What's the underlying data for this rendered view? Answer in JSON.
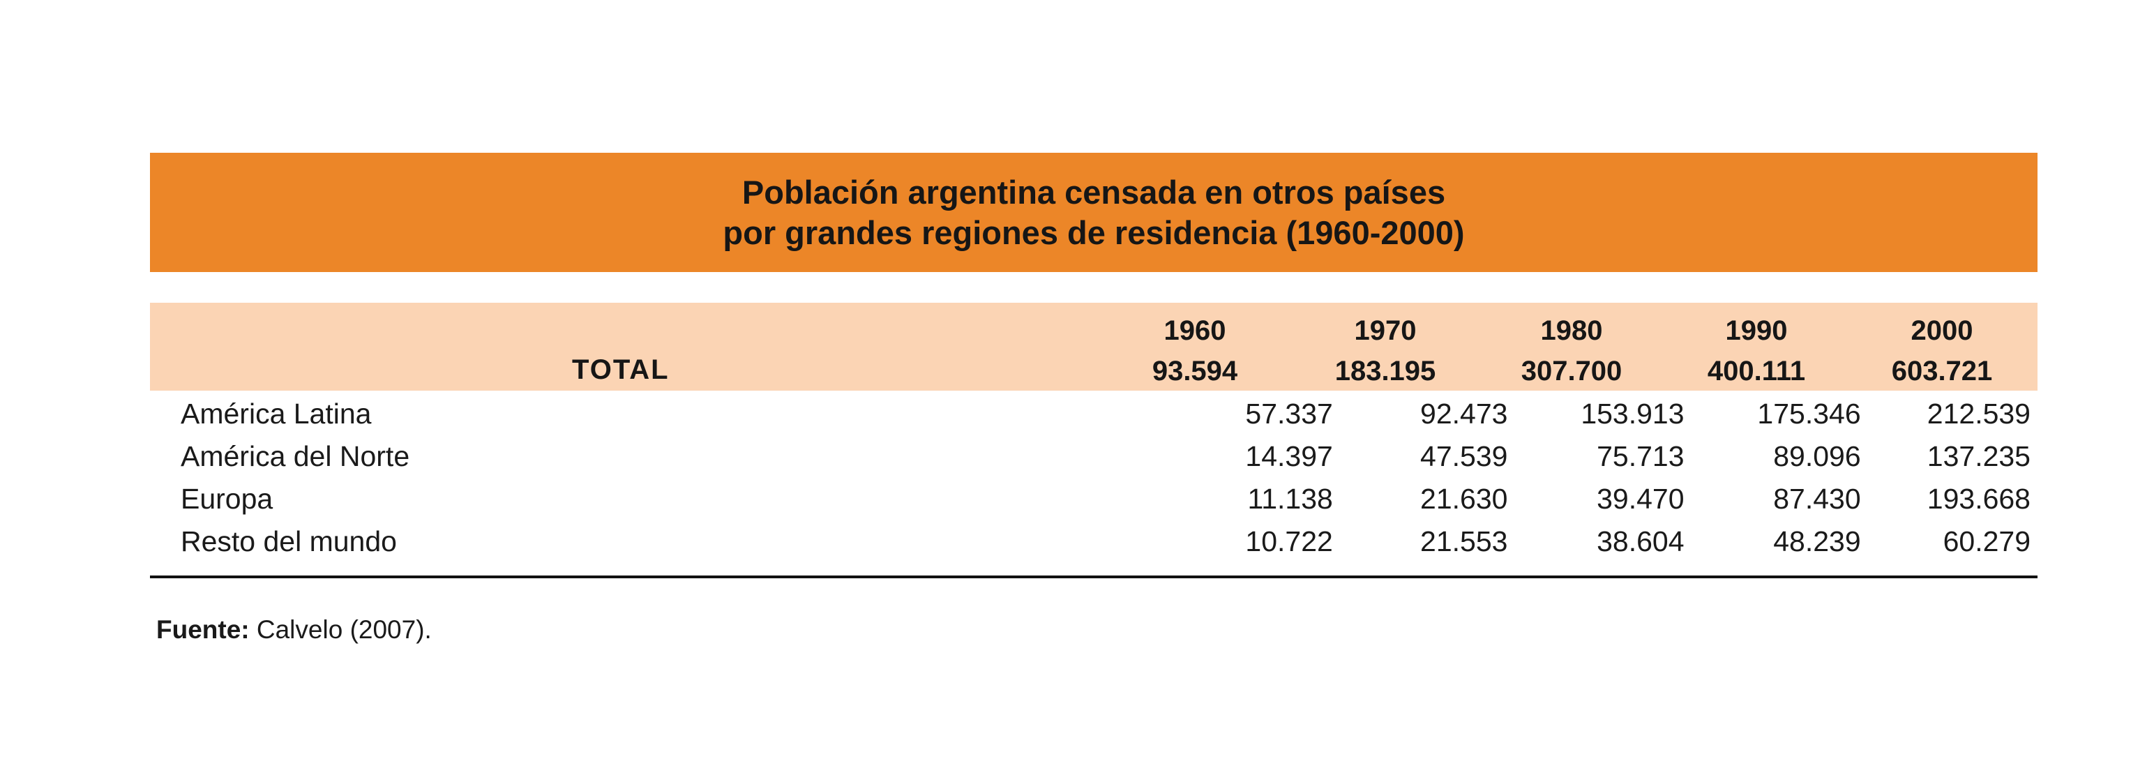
{
  "title": {
    "line1": "Población argentina censada en otros países",
    "line2": "por grandes regiones de residencia (1960-2000)"
  },
  "header": {
    "total_label": "TOTAL",
    "columns": [
      {
        "year": "1960",
        "total": "93.594"
      },
      {
        "year": "1970",
        "total": "183.195"
      },
      {
        "year": "1980",
        "total": "307.700"
      },
      {
        "year": "1990",
        "total": "400.111"
      },
      {
        "year": "2000",
        "total": "603.721"
      }
    ]
  },
  "rows": [
    {
      "region": "América Latina",
      "values": [
        "57.337",
        "92.473",
        "153.913",
        "175.346",
        "212.539"
      ]
    },
    {
      "region": "América del Norte",
      "values": [
        "14.397",
        "47.539",
        "75.713",
        "89.096",
        "137.235"
      ]
    },
    {
      "region": "Europa",
      "values": [
        "11.138",
        "21.630",
        "39.470",
        "87.430",
        "193.668"
      ]
    },
    {
      "region": "Resto del mundo",
      "values": [
        "10.722",
        "21.553",
        "38.604",
        "48.239",
        "60.279"
      ]
    }
  ],
  "source": {
    "label": "Fuente:",
    "text": " Calvelo (2007)."
  },
  "colors": {
    "title_band": "#ec8628",
    "header_band": "#fbd4b4",
    "rule": "#111111"
  }
}
